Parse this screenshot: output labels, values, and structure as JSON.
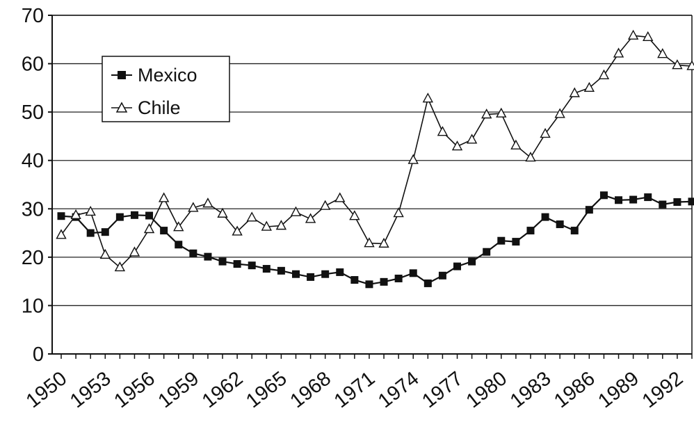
{
  "chart_data": {
    "type": "line",
    "title": "",
    "xlabel": "",
    "ylabel": "",
    "x": [
      1950,
      1951,
      1952,
      1953,
      1954,
      1955,
      1956,
      1957,
      1958,
      1959,
      1960,
      1961,
      1962,
      1963,
      1964,
      1965,
      1966,
      1967,
      1968,
      1969,
      1970,
      1971,
      1972,
      1973,
      1974,
      1975,
      1976,
      1977,
      1978,
      1979,
      1980,
      1981,
      1982,
      1983,
      1984,
      1985,
      1986,
      1987,
      1988,
      1989,
      1990,
      1991,
      1992,
      1993
    ],
    "xticks": [
      "1950",
      "1953",
      "1956",
      "1959",
      "1962",
      "1965",
      "1968",
      "1971",
      "1974",
      "1977",
      "1980",
      "1983",
      "1986",
      "1989",
      "1992"
    ],
    "ylim": [
      0,
      70
    ],
    "yticks": [
      "0",
      "10",
      "20",
      "30",
      "40",
      "50",
      "60",
      "70"
    ],
    "grid": "horizontal",
    "legend_position": "top-left",
    "series": [
      {
        "name": "Mexico",
        "marker": "filled-square",
        "color": "#111111",
        "values": [
          28.5,
          28.3,
          25.0,
          25.2,
          28.3,
          28.7,
          28.6,
          25.5,
          22.6,
          20.8,
          20.1,
          19.1,
          18.6,
          18.3,
          17.6,
          17.2,
          16.5,
          15.9,
          16.5,
          16.9,
          15.3,
          14.4,
          14.9,
          15.6,
          16.7,
          14.6,
          16.2,
          18.1,
          19.1,
          21.1,
          23.4,
          23.2,
          25.5,
          28.3,
          26.8,
          25.5,
          29.8,
          32.8,
          31.8,
          31.9,
          32.4,
          30.9,
          31.4,
          31.5
        ]
      },
      {
        "name": "Chile",
        "marker": "open-triangle",
        "color": "#111111",
        "values": [
          24.6,
          28.7,
          29.4,
          20.5,
          17.9,
          21.0,
          25.8,
          32.2,
          26.2,
          30.2,
          31.1,
          29.0,
          25.3,
          28.2,
          26.3,
          26.5,
          29.3,
          27.9,
          30.6,
          32.2,
          28.5,
          22.9,
          22.8,
          29.1,
          40.1,
          52.8,
          45.9,
          42.9,
          44.3,
          49.5,
          49.7,
          43.1,
          40.6,
          45.5,
          49.6,
          53.9,
          55.0,
          57.6,
          62.1,
          65.8,
          65.5,
          62.0,
          59.7,
          59.5
        ]
      }
    ]
  }
}
